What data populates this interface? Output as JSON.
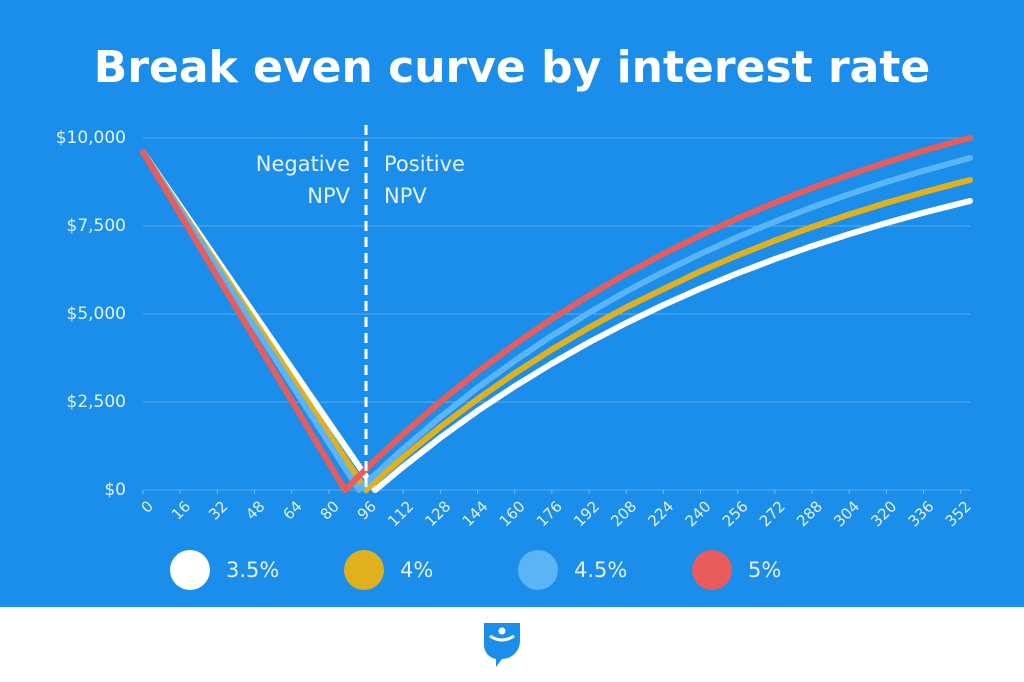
{
  "chart_data": {
    "type": "line",
    "title": "Break even curve by interest rate",
    "x": [
      0,
      16,
      32,
      48,
      64,
      80,
      87,
      93,
      96,
      100,
      112,
      128,
      144,
      160,
      176,
      192,
      208,
      224,
      240,
      256,
      272,
      288,
      304,
      320,
      336,
      352,
      356
    ],
    "series": [
      {
        "name": "3.5%",
        "color": "#ffffff",
        "values": [
          9600,
          8064,
          6528,
          4992,
          3456,
          1920,
          1248,
          672,
          384,
          0,
          662,
          1485,
          2246,
          2947,
          3594,
          4193,
          4745,
          5255,
          5724,
          6158,
          6559,
          6930,
          7271,
          7586,
          7877,
          8145,
          8210
        ]
      },
      {
        "name": "4%",
        "color": "#e1b01e",
        "values": [
          9600,
          8000,
          6400,
          4800,
          3200,
          1600,
          900,
          300,
          0,
          240,
          931,
          1790,
          2583,
          3316,
          3991,
          4615,
          5191,
          5708,
          6213,
          6668,
          7084,
          7471,
          7826,
          8156,
          8460,
          8741,
          8807
        ]
      },
      {
        "name": "4.5%",
        "color": "#5ab4f5",
        "values": [
          9600,
          7948,
          6297,
          4645,
          2994,
          1342,
          619,
          0,
          192,
          444,
          1168,
          2069,
          2902,
          3671,
          4380,
          5034,
          5638,
          6197,
          6711,
          7187,
          7625,
          8030,
          8404,
          8750,
          9068,
          9362,
          9432
        ]
      },
      {
        "name": "5%",
        "color": "#e95c5c",
        "values": [
          9600,
          7834,
          6069,
          4303,
          2538,
          772,
          0,
          400,
          595,
          851,
          1590,
          2508,
          3355,
          4137,
          4860,
          5526,
          6141,
          6709,
          7234,
          7718,
          8165,
          8578,
          8958,
          9310,
          9635,
          9934,
          10000
        ]
      }
    ],
    "xlim": [
      0,
      356
    ],
    "xticks": [
      0,
      16,
      32,
      48,
      64,
      80,
      96,
      112,
      128,
      144,
      160,
      176,
      192,
      208,
      224,
      240,
      256,
      272,
      288,
      304,
      320,
      336,
      352
    ],
    "ylim": [
      0,
      10000
    ],
    "yticks": [
      {
        "value": 0,
        "label": "$0"
      },
      {
        "value": 2500,
        "label": "$2,500"
      },
      {
        "value": 5000,
        "label": "$5,000"
      },
      {
        "value": 7500,
        "label": "$7,500"
      },
      {
        "value": 10000,
        "label": "$10,000"
      }
    ],
    "grid": true,
    "divider_x": 96,
    "annotations": {
      "negative": [
        "Negative",
        "NPV"
      ],
      "positive": [
        "Positive",
        "NPV"
      ]
    }
  }
}
